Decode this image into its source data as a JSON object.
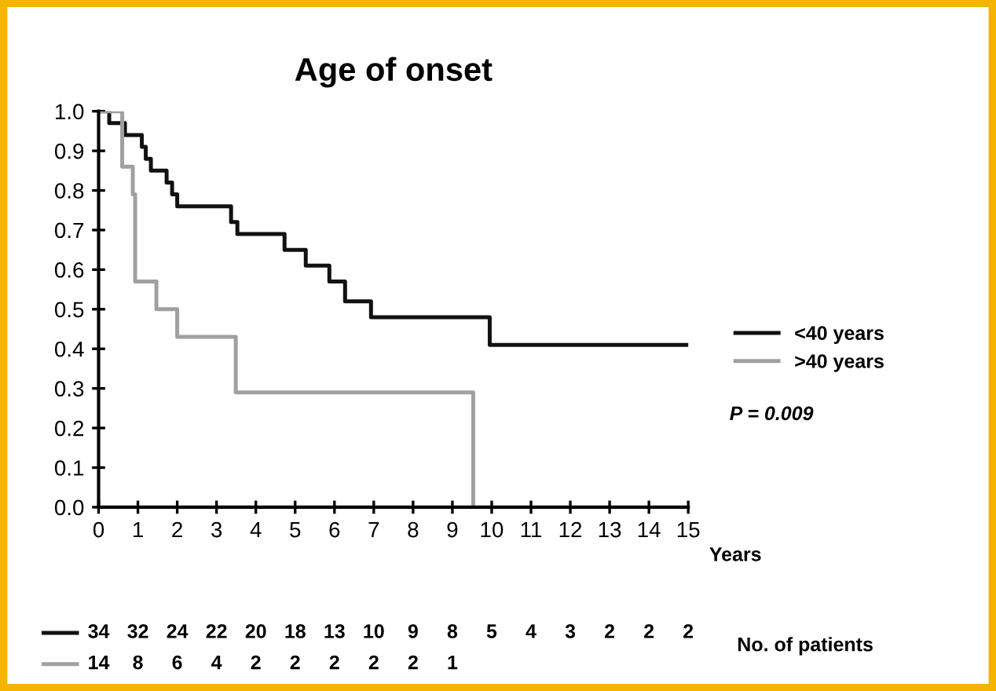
{
  "chart_data": {
    "type": "step",
    "title": "Age of onset",
    "xlabel": "Years",
    "series": [
      {
        "name": "<40 years",
        "color": "#111111",
        "x": [
          0,
          0.27,
          0.67,
          1.1,
          1.2,
          1.33,
          1.73,
          1.87,
          2.0,
          3.37,
          3.53,
          4.73,
          5.27,
          5.87,
          6.27,
          6.93,
          9.95,
          15
        ],
        "values": [
          1.0,
          0.97,
          0.94,
          0.91,
          0.88,
          0.85,
          0.82,
          0.79,
          0.76,
          0.72,
          0.69,
          0.65,
          0.61,
          0.57,
          0.52,
          0.48,
          0.41,
          0.41
        ]
      },
      {
        "name": ">40 years",
        "color": "#a0a0a0",
        "x": [
          0,
          0.6,
          0.87,
          0.93,
          1.47,
          2.0,
          3.49,
          9.53
        ],
        "values": [
          1.0,
          0.86,
          0.79,
          0.57,
          0.5,
          0.43,
          0.29,
          0.0
        ]
      }
    ],
    "xlim": [
      0,
      15
    ],
    "xticks": [
      0,
      1,
      2,
      3,
      4,
      5,
      6,
      7,
      8,
      9,
      10,
      11,
      12,
      13,
      14,
      15
    ],
    "ylim": [
      0,
      1.0
    ],
    "yticks": [
      {
        "value": 0,
        "label": "0.0"
      },
      0.1,
      0.2,
      0.3,
      0.4,
      0.5,
      0.6,
      0.7,
      0.8,
      0.9,
      {
        "value": 1.0,
        "label": "1.0"
      }
    ],
    "grid": false,
    "legend": "right",
    "line_style": "solid",
    "marker": "none",
    "annotations": [
      "P = 0.009",
      "No. of patients",
      "34",
      "32",
      "24",
      "22",
      "20",
      "18",
      "13",
      "10",
      "9",
      "8",
      "5",
      "4",
      "3",
      "2",
      "2",
      "2",
      "14",
      "8",
      "6",
      "4",
      "2",
      "2",
      "2",
      "2",
      "2",
      "1"
    ]
  }
}
